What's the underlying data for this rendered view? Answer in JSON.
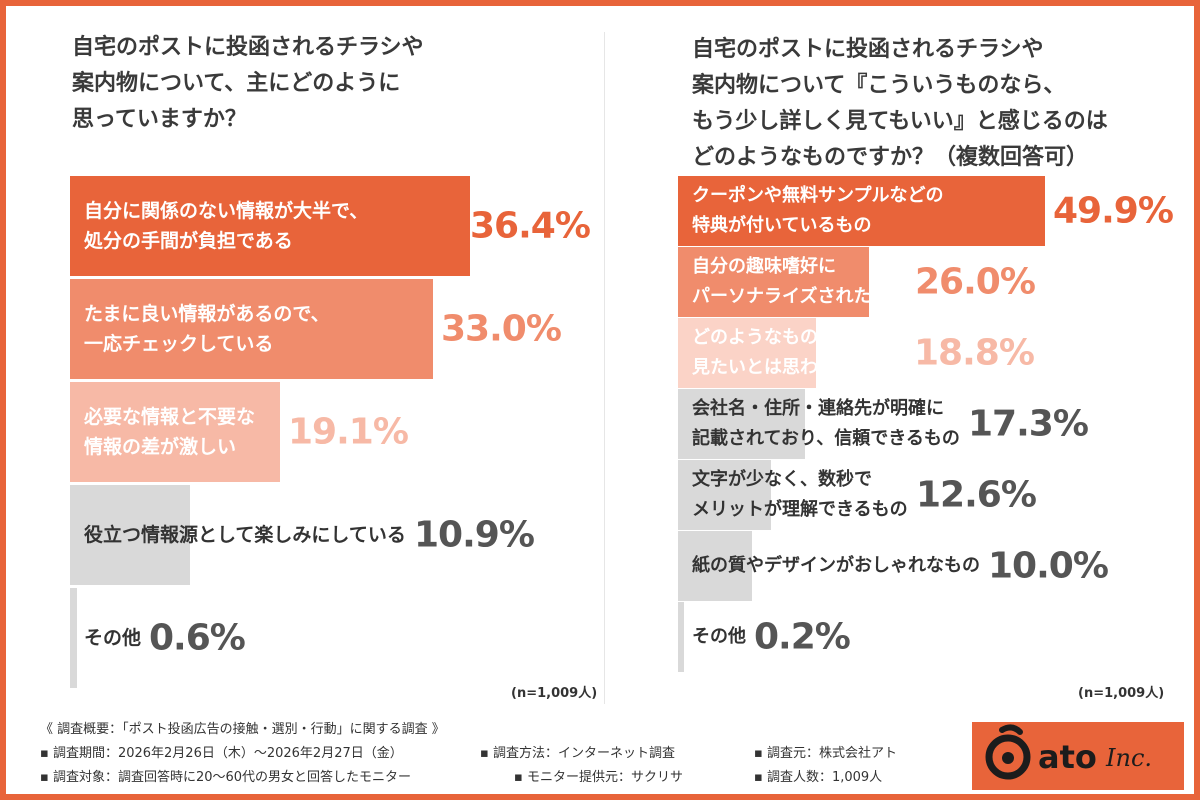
{
  "chart_data": [
    {
      "type": "bar",
      "orientation": "horizontal",
      "title": "自宅のポストに投函されるチラシや\n案内物について、主にどのように\n思っていますか？",
      "categories": [
        "自分に関係のない情報が大半で、\n処分の手間が負担である",
        "たまに良い情報があるので、\n一応チェックしている",
        "必要な情報と不要な\n情報の差が激しい",
        "役立つ情報源として楽しみにしている",
        "その他"
      ],
      "value_labels": [
        "36.4%",
        "33.0%",
        "19.1%",
        "10.9%",
        "0.6%"
      ],
      "values": [
        36.4,
        33.0,
        19.1,
        10.9,
        0.6
      ],
      "unit": "%",
      "note": "(n=1,009人)"
    },
    {
      "type": "bar",
      "orientation": "horizontal",
      "title": "自宅のポストに投函されるチラシや\n案内物について『こういうものなら、\nもう少し詳しく見てもいい』と感じるのは\nどのようなものですか？（複数回答可）",
      "categories": [
        "クーポンや無料サンプルなどの\n特典が付いているもの",
        "自分の趣味嗜好に\nパーソナライズされた内容",
        "どのようなものであっても\n見たいとは思わない",
        "会社名・住所・連絡先が明確に\n記載されており、信頼できるもの",
        "文字が少なく、数秒で\nメリットが理解できるもの",
        "紙の質やデザインがおしゃれなもの",
        "その他"
      ],
      "value_labels": [
        "49.9%",
        "26.0%",
        "18.8%",
        "17.3%",
        "12.6%",
        "10.0%",
        "0.2%"
      ],
      "values": [
        49.9,
        26.0,
        18.8,
        17.3,
        12.6,
        10.0,
        0.2
      ],
      "unit": "%",
      "note": "(n=1,009人)"
    }
  ],
  "colors": {
    "accent": "#e8643a",
    "orange1": "#e8643a",
    "orange2": "#f08c6c",
    "orange3": "#f7b9a6",
    "orange4": "#fbd3c7",
    "gray": "#d9d9d9",
    "value_gray": "#555555",
    "label_dark": "#333333"
  },
  "footer": {
    "heading": "《 調査概要：「ポスト投函広告の接触・選別・行動」に関する調査 》",
    "period": "▪ 調査期間：2026年2月26日（木）～2026年2月27日（金）",
    "method": "▪ 調査方法：インターネット調査",
    "source": "▪ 調査元：株式会社アト",
    "target": "▪ 調査対象：調査回答時に20〜60代の男女と回答したモニター",
    "provider": "▪ モニター提供元：サクリサ",
    "count": "▪ 調査人数：1,009人"
  },
  "logo": {
    "text": "ato",
    "suffix": "Inc."
  }
}
